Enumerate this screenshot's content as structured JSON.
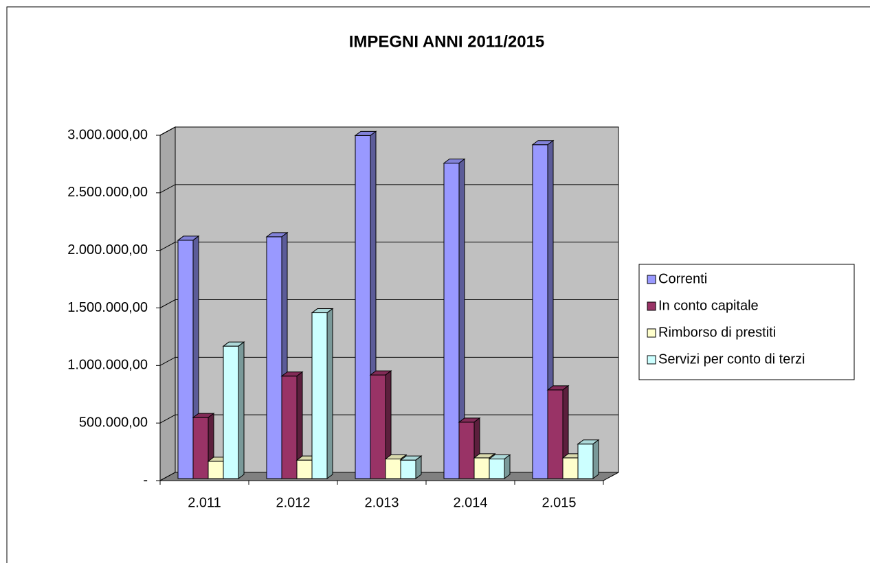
{
  "chart_data": {
    "type": "bar3d",
    "title": "IMPEGNI ANNI 2011/2015",
    "categories": [
      "2.011",
      "2.012",
      "2.013",
      "2.014",
      "2.015"
    ],
    "series": [
      {
        "name": "Correnti",
        "color": "#9999ff",
        "values": [
          2070000,
          2100000,
          2980000,
          2740000,
          2900000
        ]
      },
      {
        "name": "In conto capitale",
        "color": "#993366",
        "values": [
          530000,
          890000,
          900000,
          490000,
          770000
        ]
      },
      {
        "name": "Rimborso di prestiti",
        "color": "#ffffcc",
        "values": [
          150000,
          160000,
          170000,
          180000,
          180000
        ]
      },
      {
        "name": "Servizi per conto di terzi",
        "color": "#ccffff",
        "values": [
          1150000,
          1440000,
          160000,
          170000,
          300000
        ]
      }
    ],
    "ylim": [
      0,
      3000000
    ],
    "yticks": [
      {
        "value": 0,
        "label": "-"
      },
      {
        "value": 500000,
        "label": "500.000,00"
      },
      {
        "value": 1000000,
        "label": "1.000.000,00"
      },
      {
        "value": 1500000,
        "label": "1.500.000,00"
      },
      {
        "value": 2000000,
        "label": "2.000.000,00"
      },
      {
        "value": 2500000,
        "label": "2.500.000,00"
      },
      {
        "value": 3000000,
        "label": "3.000.000,00"
      }
    ],
    "grid": true,
    "legend": "right"
  }
}
